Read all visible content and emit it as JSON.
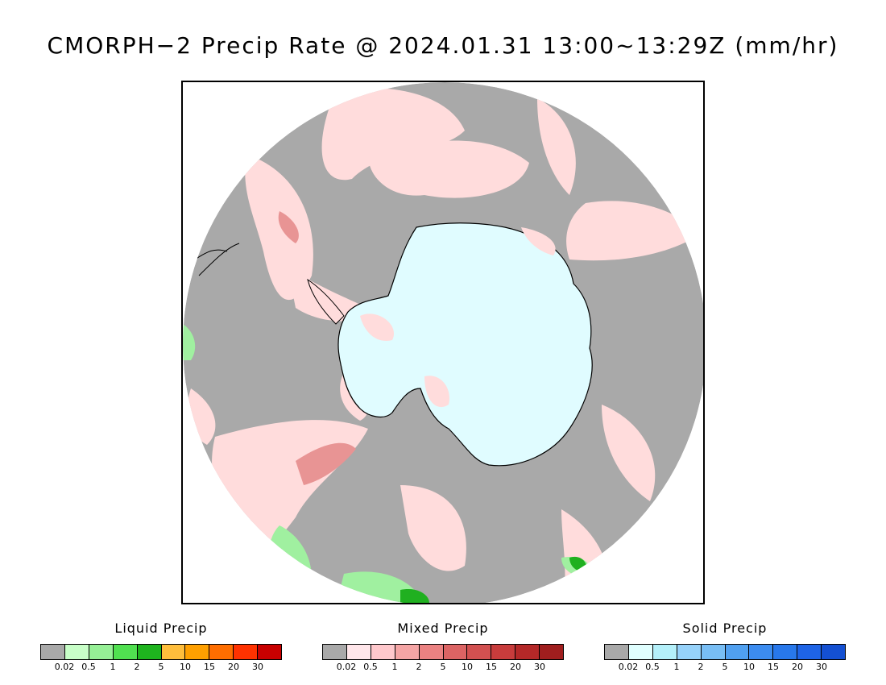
{
  "title": "CMORPH−2 Precip Rate @ 2024.01.31 13:00~13:29Z (mm/hr)",
  "map": {
    "projection": "south-polar stereographic",
    "region": "Antarctica / Southern Ocean",
    "colors": {
      "no_precip": "#a9a9a9",
      "ice_land": "#e0fcff",
      "light_mixed": "#ffdcdc",
      "mixed_2": "#f0a0a0",
      "liquid_light": "#a0f0a0",
      "liquid_heavy": "#20b020",
      "solid_light": "#a8e8f8",
      "coast": "#000000"
    }
  },
  "legends": [
    {
      "title": "Liquid Precip",
      "colors": [
        "#a9a9a9",
        "#c8ffc8",
        "#96f096",
        "#50e050",
        "#1eb41e",
        "#ffbe3c",
        "#ffa000",
        "#ff6e00",
        "#ff3200",
        "#c80000"
      ],
      "ticks": [
        "0.02",
        "0.5",
        "1",
        "2",
        "5",
        "10",
        "15",
        "20",
        "30"
      ]
    },
    {
      "title": "Mixed Precip",
      "colors": [
        "#a9a9a9",
        "#ffe6ea",
        "#ffc8cc",
        "#f5a5a5",
        "#eb8282",
        "#dc6464",
        "#d25050",
        "#c83c3c",
        "#b42828",
        "#a01e1e"
      ],
      "ticks": [
        "0.02",
        "0.5",
        "1",
        "2",
        "5",
        "10",
        "15",
        "20",
        "30"
      ]
    },
    {
      "title": "Solid Precip",
      "colors": [
        "#a9a9a9",
        "#e0ffff",
        "#b4f0fa",
        "#96d2fa",
        "#78bef5",
        "#50a0f0",
        "#3c8cf0",
        "#2878eb",
        "#1e64e6",
        "#1450d2"
      ],
      "ticks": [
        "0.02",
        "0.5",
        "1",
        "2",
        "5",
        "10",
        "15",
        "20",
        "30"
      ]
    }
  ]
}
